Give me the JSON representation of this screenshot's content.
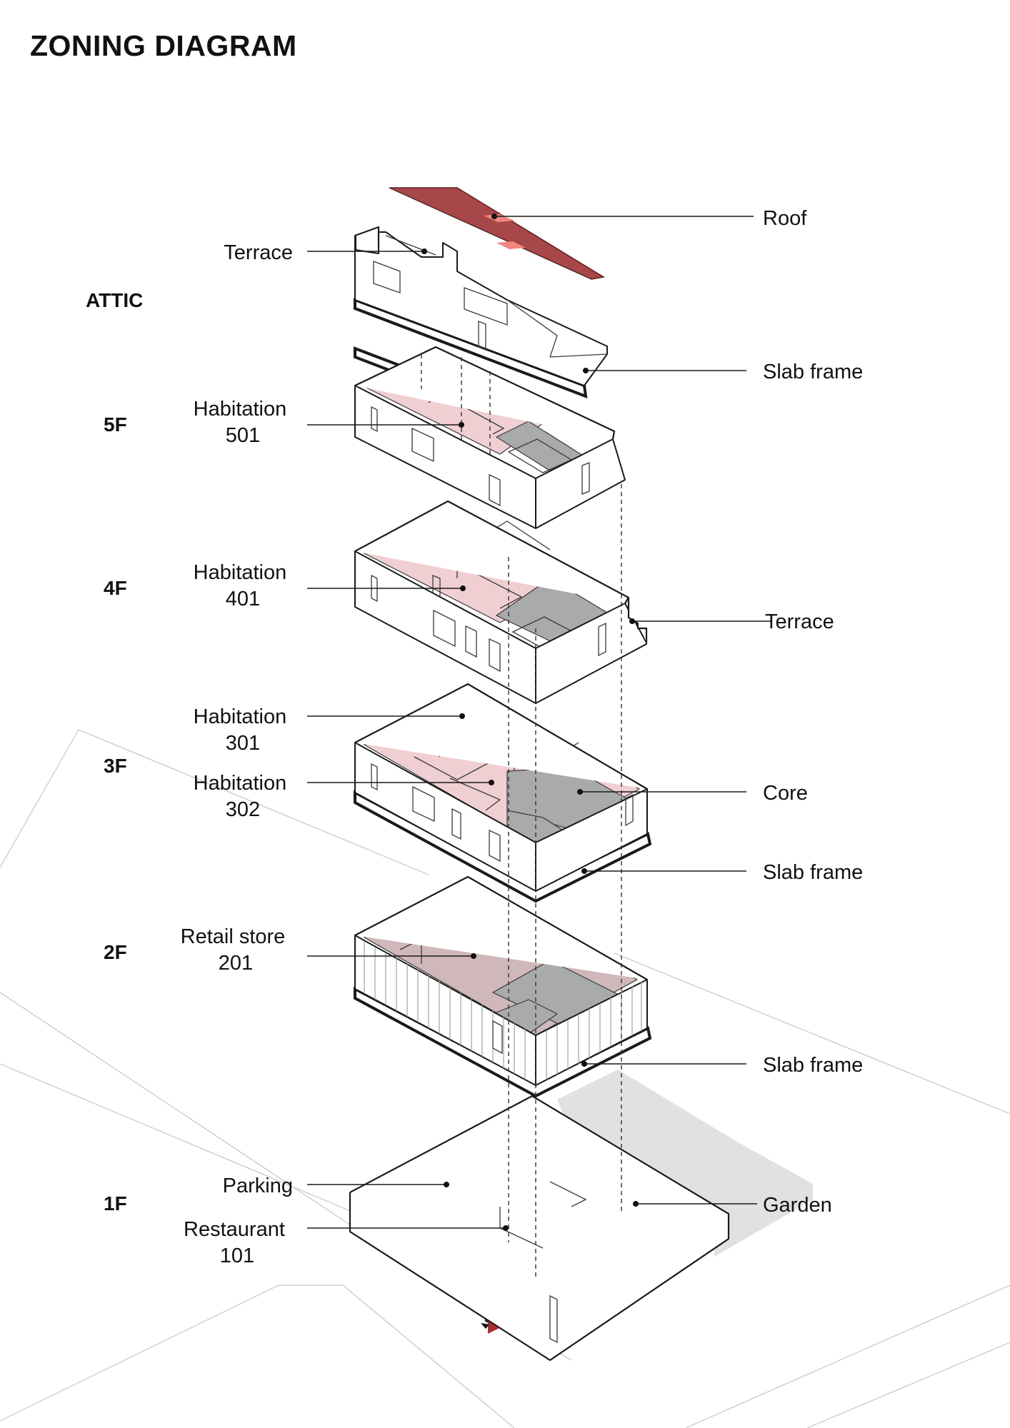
{
  "title": "ZONING DIAGRAM",
  "floors": {
    "attic": "ATTIC",
    "f5": "5F",
    "f4": "4F",
    "f3": "3F",
    "f2": "2F",
    "f1": "1F"
  },
  "labels": {
    "terrace_attic": "Terrace",
    "roof": "Roof",
    "slab_frame_top": "Slab frame",
    "habitation_501": [
      "Habitation",
      "501"
    ],
    "habitation_401": [
      "Habitation",
      "401"
    ],
    "terrace_4f": "Terrace",
    "habitation_301": [
      "Habitation",
      "301"
    ],
    "habitation_302": [
      "Habitation",
      "302"
    ],
    "core": "Core",
    "slab_frame_3f": "Slab frame",
    "retail_201": [
      "Retail store",
      "201"
    ],
    "slab_frame_2f": "Slab frame",
    "parking": "Parking",
    "restaurant_101": [
      "Restaurant",
      "101"
    ],
    "garden": "Garden"
  },
  "colors": {
    "roof": "#a7474a",
    "roof_skylight": "#f2857f",
    "habitation": "#f0cfd3",
    "core": "#a9aaab",
    "retail": "#cfb7ba",
    "parking": "#b0a2a4",
    "garden": "#c4f1b6",
    "garden_shadow": "#dfe2e1",
    "entry": "#a7302f"
  }
}
